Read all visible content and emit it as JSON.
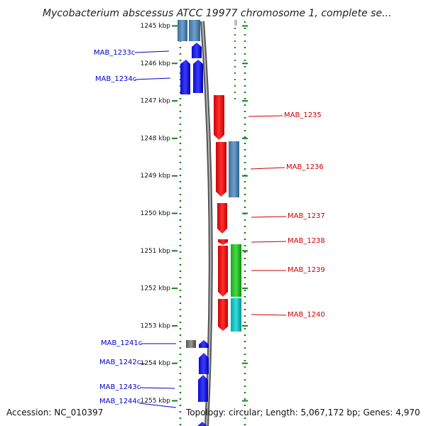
{
  "title": "Mycobacterium abscessus ATCC 19977 chromosome 1, complete se...",
  "footer": {
    "accession": "Accession: NC_010397",
    "topology": "Topology: circular; Length: 5,067,172 bp; Genes: 4,970"
  },
  "colors": {
    "reverse_label": "#0000cc",
    "forward_label": "#cc0000",
    "backbone": "#8a8a8a",
    "dots": "#1a7f1a"
  },
  "ticks": [
    {
      "label": "1245 kbp",
      "kbp": 1245
    },
    {
      "label": "1246 kbp",
      "kbp": 1246
    },
    {
      "label": "1247 kbp",
      "kbp": 1247
    },
    {
      "label": "1248 kbp",
      "kbp": 1248
    },
    {
      "label": "1249 kbp",
      "kbp": 1249
    },
    {
      "label": "1250 kbp",
      "kbp": 1250
    },
    {
      "label": "1251 kbp",
      "kbp": 1251
    },
    {
      "label": "1252 kbp",
      "kbp": 1252
    },
    {
      "label": "1253 kbp",
      "kbp": 1253
    },
    {
      "label": "1254 kbp",
      "kbp": 1254
    },
    {
      "label": "1255 kbp",
      "kbp": 1255
    }
  ],
  "genes": [
    {
      "name": "MAB_1233c",
      "strand": "reverse",
      "start": 1245.55,
      "end": 1245.75
    },
    {
      "name": "MAB_1234c",
      "strand": "reverse",
      "start": 1245.85,
      "end": 1246.8
    },
    {
      "name": "MAB_1235",
      "strand": "forward",
      "start": 1246.8,
      "end": 1248.0
    },
    {
      "name": "MAB_1236",
      "strand": "forward",
      "start": 1248.1,
      "end": 1249.6
    },
    {
      "name": "MAB_1237",
      "strand": "forward",
      "start": 1249.7,
      "end": 1250.5
    },
    {
      "name": "MAB_1238",
      "strand": "forward",
      "start": 1250.6,
      "end": 1250.75
    },
    {
      "name": "MAB_1239",
      "strand": "forward",
      "start": 1250.75,
      "end": 1252.25
    },
    {
      "name": "MAB_1240",
      "strand": "forward",
      "start": 1252.3,
      "end": 1253.15
    },
    {
      "name": "MAB_1241c",
      "strand": "reverse",
      "start": 1253.45,
      "end": 1253.7
    },
    {
      "name": "MAB_1242c",
      "strand": "reverse",
      "start": 1253.8,
      "end": 1254.3
    },
    {
      "name": "MAB_1243c",
      "strand": "reverse",
      "start": 1254.35,
      "end": 1255.0
    },
    {
      "name": "MAB_1244c",
      "strand": "reverse",
      "start": 1255.05,
      "end": 1255.6
    }
  ]
}
